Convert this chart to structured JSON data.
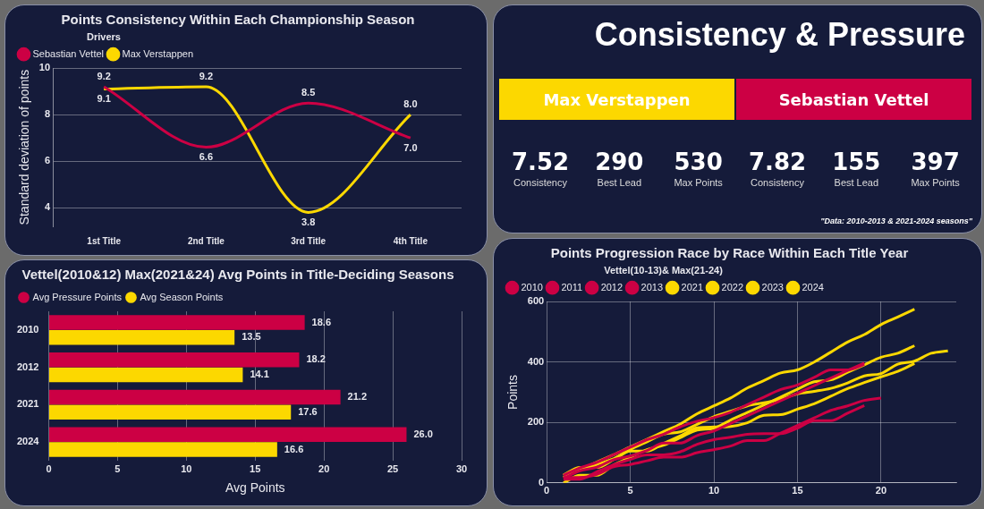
{
  "chart_data": [
    {
      "type": "line",
      "title": "Points Consistency Within Each Championship Season",
      "legend_title": "Drivers",
      "legend": "top left",
      "ylabel": "Standard deviation of points",
      "categories": [
        "1st Title",
        "2nd Title",
        "3rd Title",
        "4th Title"
      ],
      "ylim": [
        3.2,
        10
      ],
      "yticks": [
        4,
        6,
        8,
        10
      ],
      "grid": "y",
      "marker": "none",
      "series": [
        {
          "name": "Sebastian Vettel",
          "color": "#cc0044",
          "values": [
            9.2,
            6.6,
            8.5,
            7.0
          ],
          "value_labels": [
            "9.2",
            "6.6",
            "8.5",
            "7.0"
          ]
        },
        {
          "name": "Max Verstappen",
          "color": "#fcd800",
          "values": [
            9.1,
            9.2,
            3.8,
            8.0
          ],
          "value_labels": [
            "9.1",
            "9.2",
            "3.8",
            "8.0"
          ]
        }
      ]
    },
    {
      "type": "other",
      "title": "Consistency & Pressure",
      "annotations": [
        "Max Verstappen",
        "Sebastian Vettel",
        "7.52",
        "Consistency",
        "290",
        "Best Lead",
        "530",
        "Max Points",
        "7.82",
        "Consistency",
        "155",
        "Best Lead",
        "397",
        "Max Points",
        "\"Data: 2010-2013 & 2021-2024 seasons\""
      ]
    },
    {
      "type": "bar",
      "orientation": "horizontal",
      "title": "Vettel(2010&12) Max(2021&24) Avg Points in Title-Deciding Seasons",
      "legend": "top left",
      "xlabel": "Avg Points",
      "categories": [
        "2010",
        "2012",
        "2021",
        "2024"
      ],
      "xlim": [
        0,
        30
      ],
      "xticks": [
        0,
        5,
        10,
        15,
        20,
        25,
        30
      ],
      "grid": "x",
      "series": [
        {
          "name": "Avg Pressure Points",
          "color": "#cc0044",
          "values": [
            18.6,
            18.2,
            21.2,
            26.0
          ],
          "value_labels": [
            "18.6",
            "18.2",
            "21.2",
            "26.0"
          ]
        },
        {
          "name": "Avg Season Points",
          "color": "#fcd800",
          "values": [
            13.5,
            14.1,
            17.6,
            16.6
          ],
          "value_labels": [
            "13.5",
            "14.1",
            "17.6",
            "16.6"
          ]
        }
      ]
    },
    {
      "type": "line",
      "title": "Points Progression Race by Race Within Each Title Year",
      "legend_title": "Vettel(10-13)& Max(21-24)",
      "legend": "top left",
      "ylabel": "Points",
      "x": [
        1,
        2,
        3,
        4,
        5,
        6,
        7,
        8,
        9,
        10,
        11,
        12,
        13,
        14,
        15,
        16,
        17,
        18,
        19,
        20,
        21,
        22,
        23,
        24
      ],
      "xlim": [
        0,
        24.5
      ],
      "xticks": [
        0,
        5,
        10,
        15,
        20
      ],
      "ylim": [
        0,
        600
      ],
      "yticks": [
        0,
        200,
        400,
        600
      ],
      "grid": true,
      "marker": "none",
      "series": [
        {
          "name": "2010",
          "color": "#cc0044",
          "values": [
            12,
            12,
            37,
            60,
            78,
            93,
            93,
            103,
            128,
            143,
            151,
            161,
            163,
            163,
            181,
            206,
            206,
            231,
            256,
            null,
            null,
            null,
            null,
            null
          ]
        },
        {
          "name": "2011",
          "color": "#cc0044",
          "values": [
            25,
            50,
            68,
            93,
            118,
            143,
            161,
            186,
            204,
            216,
            234,
            259,
            284,
            309,
            324,
            349,
            374,
            374,
            392,
            null,
            null,
            null,
            null,
            null
          ]
        },
        {
          "name": "2012",
          "color": "#cc0044",
          "values": [
            18,
            18,
            28,
            53,
            61,
            73,
            85,
            85,
            100,
            110,
            122,
            140,
            140,
            165,
            190,
            215,
            240,
            255,
            273,
            281,
            null,
            null,
            null,
            null
          ]
        },
        {
          "name": "2013",
          "color": "#cc0044",
          "values": [
            15,
            40,
            52,
            77,
            89,
            107,
            132,
            132,
            157,
            172,
            197,
            222,
            247,
            272,
            297,
            322,
            347,
            372,
            397,
            null,
            null,
            null,
            null,
            null
          ]
        },
        {
          "name": "2021",
          "color": "#fcd800",
          "values": [
            18,
            44,
            61,
            80,
            105,
            105,
            131,
            156,
            182,
            185,
            187,
            199,
            224,
            226,
            244,
            262,
            287,
            312,
            332,
            351,
            369,
            395,
            null,
            null
          ]
        },
        {
          "name": "2022",
          "color": "#fcd800",
          "values": [
            0,
            25,
            25,
            59,
            85,
            110,
            125,
            150,
            175,
            181,
            208,
            233,
            258,
            284,
            310,
            335,
            341,
            366,
            391,
            416,
            429,
            454,
            null,
            null
          ]
        },
        {
          "name": "2023",
          "color": "#fcd800",
          "values": [
            25,
            44,
            69,
            93,
            119,
            144,
            170,
            195,
            229,
            255,
            281,
            314,
            339,
            364,
            374,
            400,
            433,
            466,
            491,
            524,
            549,
            575,
            null,
            null
          ]
        },
        {
          "name": "2024",
          "color": "#fcd800",
          "values": [
            26,
            51,
            51,
            77,
            110,
            136,
            161,
            169,
            194,
            219,
            237,
            255,
            265,
            277,
            295,
            303,
            313,
            331,
            354,
            362,
            393,
            403,
            429,
            437
          ]
        }
      ]
    }
  ]
}
